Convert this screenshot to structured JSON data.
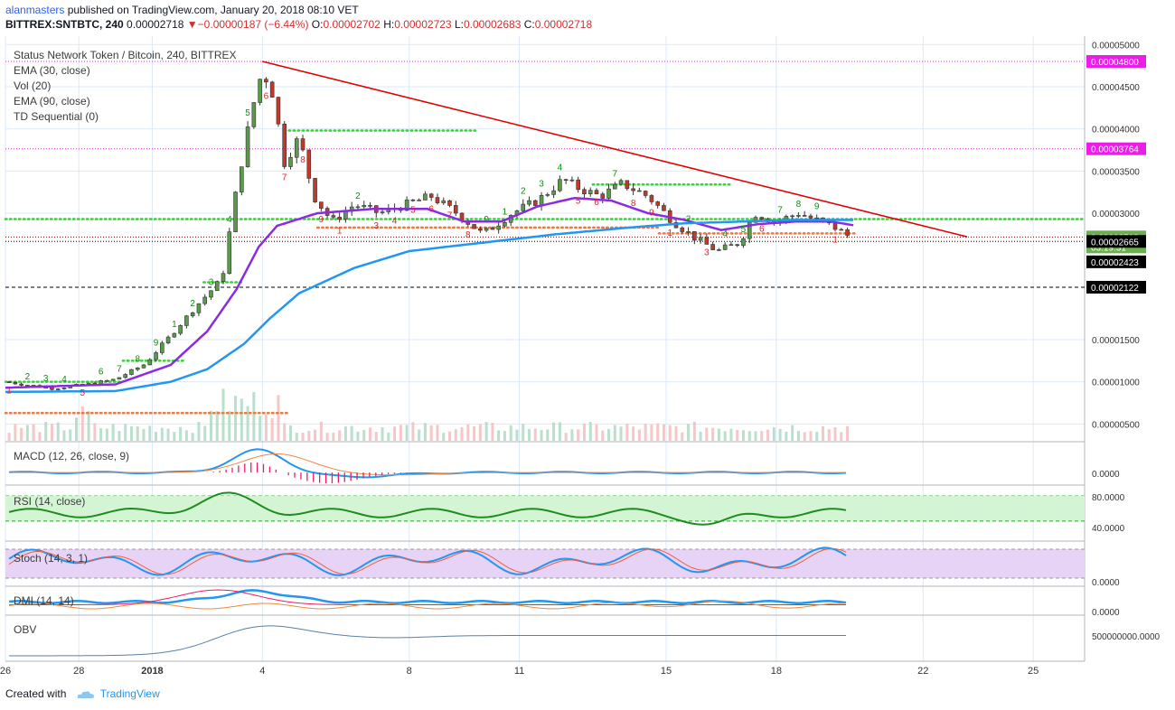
{
  "header": {
    "user": "alanmasters",
    "published": " published on TradingView.com, January 20, 2018 08:10 VET",
    "symbol": "BITTREX:SNTBTC, 240",
    "last": "0.00002718",
    "change_arrow": "▼",
    "change": "−0.00000187 (−6.44%)",
    "o_label": "O:",
    "o": "0.00002702",
    "h_label": "H:",
    "h": "0.00002723",
    "l_label": "L:",
    "l": "0.00002683",
    "c_label": "C:",
    "c": "0.00002718"
  },
  "legend": [
    "Status Network Token / Bitcoin, 240, BITTREX",
    "EMA (30, close)",
    "Vol (20)",
    "EMA (90, close)",
    "TD Sequential (0)"
  ],
  "panes": {
    "macd": {
      "label": "MACD (12, 26, close, 9)",
      "tick": "0.0000"
    },
    "rsi": {
      "label": "RSI (14, close)",
      "ticks": [
        "80.0000",
        "40.0000"
      ]
    },
    "stoch": {
      "label": "Stoch (14, 3, 1)",
      "tick": "0.0000"
    },
    "dmi": {
      "label": "DMI (14, 14)",
      "tick": "0.0000"
    },
    "obv": {
      "label": "OBV",
      "tick": "500000000.0000"
    }
  },
  "price_axis": {
    "ticks": [
      "0.00005000",
      "0.00004500",
      "0.00004000",
      "0.00003500",
      "0.00003000",
      "0.00001500",
      "0.00001000",
      "0.00000500"
    ],
    "tags": [
      {
        "text": "0.00004800",
        "value": 4.8e-05,
        "color": "#e91ee9"
      },
      {
        "text": "0.00003764",
        "value": 3.764e-05,
        "color": "#e91ee9"
      },
      {
        "text": "0.00002718",
        "value": 2.718e-05,
        "color": "#6ab04c"
      },
      {
        "text": "03:19:31",
        "value": 2.6e-05,
        "color": "#6ab04c"
      },
      {
        "text": "0.00002665",
        "value": 2.665e-05,
        "color": "#000000"
      },
      {
        "text": "0.00002423",
        "value": 2.423e-05,
        "color": "#000000"
      },
      {
        "text": "0.00002122",
        "value": 2.122e-05,
        "color": "#000000"
      }
    ]
  },
  "time_axis": [
    {
      "label": "26",
      "day": 0,
      "bold": false
    },
    {
      "label": "28",
      "day": 2,
      "bold": false
    },
    {
      "label": "2018",
      "day": 4,
      "bold": true
    },
    {
      "label": "4",
      "day": 7,
      "bold": false
    },
    {
      "label": "8",
      "day": 11,
      "bold": false
    },
    {
      "label": "11",
      "day": 14,
      "bold": false
    },
    {
      "label": "15",
      "day": 18,
      "bold": false
    },
    {
      "label": "18",
      "day": 21,
      "bold": false
    },
    {
      "label": "22",
      "day": 25,
      "bold": false
    },
    {
      "label": "25",
      "day": 28,
      "bold": false
    }
  ],
  "footer": {
    "created": "Created with",
    "brand": "TradingView"
  },
  "chart_data": {
    "type": "candlestick",
    "title": "Status Network Token / Bitcoin, 240, BITTREX",
    "xlabel": "",
    "ylabel": "",
    "ylim": [
      3e-06,
      5.1e-05
    ],
    "xlim_days": [
      0,
      29.4
    ],
    "candle_interval_days": 0.1667,
    "price_keypoints": [
      [
        0.0,
        1e-05
      ],
      [
        1.3,
        9.2e-06
      ],
      [
        2.2,
        9.7e-06
      ],
      [
        3.0,
        1.03e-05
      ],
      [
        3.8,
        1.21e-05
      ],
      [
        4.5,
        1.55e-05
      ],
      [
        5.2,
        1.9e-05
      ],
      [
        5.9,
        2.22e-05
      ],
      [
        6.3,
        3.3e-05
      ],
      [
        6.7,
        4.2e-05
      ],
      [
        7.0,
        4.7e-05
      ],
      [
        7.3,
        4.4e-05
      ],
      [
        7.6,
        3.6e-05
      ],
      [
        8.0,
        3.9e-05
      ],
      [
        8.4,
        3.2e-05
      ],
      [
        8.9,
        2.9e-05
      ],
      [
        9.5,
        3.1e-05
      ],
      [
        10.2,
        3e-05
      ],
      [
        10.9,
        3.1e-05
      ],
      [
        11.6,
        3.2e-05
      ],
      [
        12.3,
        3e-05
      ],
      [
        13.0,
        2.75e-05
      ],
      [
        13.8,
        3e-05
      ],
      [
        14.5,
        3.15e-05
      ],
      [
        15.2,
        3.4e-05
      ],
      [
        15.6,
        3.3e-05
      ],
      [
        16.2,
        3.2e-05
      ],
      [
        16.8,
        3.35e-05
      ],
      [
        17.5,
        3.2e-05
      ],
      [
        18.2,
        2.9e-05
      ],
      [
        18.8,
        2.7e-05
      ],
      [
        19.4,
        2.55e-05
      ],
      [
        20.0,
        2.65e-05
      ],
      [
        20.4,
        3e-05
      ],
      [
        21.0,
        2.9e-05
      ],
      [
        21.6,
        3e-05
      ],
      [
        22.2,
        2.9e-05
      ],
      [
        22.6,
        2.83e-05
      ],
      [
        23.0,
        2.72e-05
      ]
    ],
    "ema30_keypoints": [
      [
        0.0,
        9.3e-06
      ],
      [
        3.0,
        9.7e-06
      ],
      [
        4.5,
        1.2e-05
      ],
      [
        5.5,
        1.6e-05
      ],
      [
        6.3,
        2.1e-05
      ],
      [
        6.9,
        2.6e-05
      ],
      [
        7.4,
        2.85e-05
      ],
      [
        8.5,
        3e-05
      ],
      [
        10.0,
        3.05e-05
      ],
      [
        11.5,
        3.05e-05
      ],
      [
        12.5,
        2.9e-05
      ],
      [
        13.5,
        2.9e-05
      ],
      [
        14.5,
        3.08e-05
      ],
      [
        15.5,
        3.18e-05
      ],
      [
        16.5,
        3.15e-05
      ],
      [
        17.5,
        3e-05
      ],
      [
        18.5,
        2.92e-05
      ],
      [
        19.5,
        2.8e-05
      ],
      [
        20.5,
        2.87e-05
      ],
      [
        21.5,
        2.9e-05
      ],
      [
        22.5,
        2.9e-05
      ],
      [
        23.2,
        2.85e-05
      ]
    ],
    "ema90_keypoints": [
      [
        0.0,
        8.8e-06
      ],
      [
        3.0,
        8.9e-06
      ],
      [
        4.5,
        1e-05
      ],
      [
        5.5,
        1.15e-05
      ],
      [
        6.5,
        1.45e-05
      ],
      [
        7.2,
        1.75e-05
      ],
      [
        8.0,
        2.05e-05
      ],
      [
        9.5,
        2.35e-05
      ],
      [
        11.0,
        2.55e-05
      ],
      [
        13.0,
        2.65e-05
      ],
      [
        15.0,
        2.75e-05
      ],
      [
        17.0,
        2.83e-05
      ],
      [
        18.5,
        2.88e-05
      ],
      [
        20.0,
        2.9e-05
      ],
      [
        21.5,
        2.92e-05
      ],
      [
        23.2,
        2.92e-05
      ]
    ],
    "trendline": {
      "from": [
        7.0,
        4.8e-05
      ],
      "to": [
        26.2,
        2.72e-05
      ],
      "color": "#e00000"
    },
    "horizontal_levels": [
      {
        "value": 4.8e-05,
        "color": "#e91ee9",
        "style": "dotted"
      },
      {
        "value": 3.764e-05,
        "color": "#e91ee9",
        "style": "dotted"
      },
      {
        "value": 2.718e-05,
        "color": "#8b0000",
        "style": "dotted"
      },
      {
        "value": 2.665e-05,
        "color": "#000000",
        "style": "dotted"
      },
      {
        "value": 2.122e-05,
        "color": "#000000",
        "style": "dashed"
      }
    ],
    "rsi_band": [
      40,
      80
    ],
    "legend_placement": "top-left",
    "grid": true
  }
}
